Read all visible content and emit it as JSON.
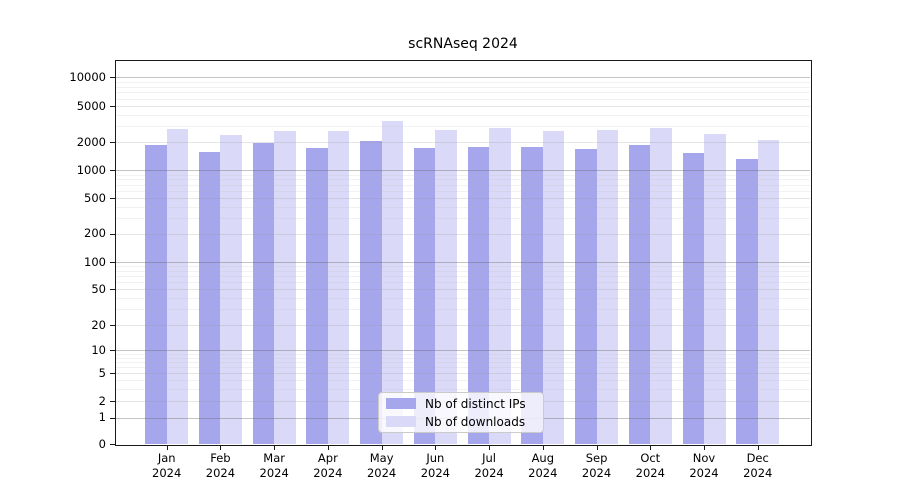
{
  "title": "scRNAseq 2024",
  "legend": {
    "items": [
      {
        "label": "Nb of distinct IPs"
      },
      {
        "label": "Nb of downloads"
      }
    ]
  },
  "chart_data": {
    "type": "bar",
    "title": "scRNAseq 2024",
    "categories": [
      "Jan 2024",
      "Feb 2024",
      "Mar 2024",
      "Apr 2024",
      "May 2024",
      "Jun 2024",
      "Jul 2024",
      "Aug 2024",
      "Sep 2024",
      "Oct 2024",
      "Nov 2024",
      "Dec 2024"
    ],
    "series": [
      {
        "name": "Nb of distinct IPs",
        "color": "#a6a6ec",
        "values": [
          1870,
          1550,
          1970,
          1740,
          2050,
          1720,
          1780,
          1780,
          1680,
          1860,
          1520,
          1310
        ]
      },
      {
        "name": "Nb of downloads",
        "color": "#dadaf8",
        "values": [
          2780,
          2400,
          2650,
          2650,
          3390,
          2690,
          2830,
          2630,
          2710,
          2900,
          2440,
          2130
        ]
      }
    ],
    "xlabel": "",
    "ylabel": "",
    "yscale": "symlog",
    "yticks": [
      0,
      1,
      2,
      5,
      10,
      20,
      50,
      100,
      200,
      500,
      1000,
      2000,
      5000,
      10000
    ],
    "ylim": [
      0,
      14000
    ],
    "grid": true,
    "grid_minor": true,
    "legend_position": "lower center"
  }
}
